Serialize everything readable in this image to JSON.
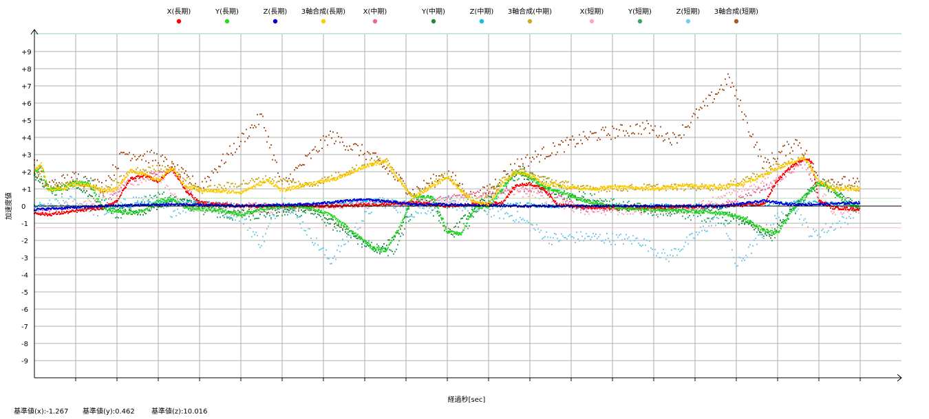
{
  "chart_data": {
    "type": "scatter",
    "xlabel": "経過秒[sec]",
    "ylabel": "加速度値",
    "ylim": [
      -10,
      10
    ],
    "xlim": [
      0,
      120
    ],
    "grid": true,
    "legend_position": "top",
    "y_ticks": [
      "+9",
      "+8",
      "+7",
      "+6",
      "+5",
      "+4",
      "+3",
      "+2",
      "+1",
      "0",
      "-1",
      "-2",
      "-3",
      "-4",
      "-5",
      "-6",
      "-7",
      "-8",
      "-9"
    ],
    "series": [
      {
        "name": "X(長期)",
        "color": "#ff0000",
        "values": [
          [
            0,
            -0.4
          ],
          [
            2,
            -0.5
          ],
          [
            6,
            -0.3
          ],
          [
            10,
            -0.1
          ],
          [
            12,
            0.3
          ],
          [
            14,
            1.6
          ],
          [
            16,
            1.8
          ],
          [
            18,
            1.4
          ],
          [
            20,
            2.2
          ],
          [
            22,
            0.9
          ],
          [
            24,
            0.2
          ],
          [
            30,
            0.0
          ],
          [
            36,
            0.0
          ],
          [
            40,
            0.0
          ],
          [
            45,
            0.0
          ],
          [
            50,
            0.1
          ],
          [
            55,
            0.2
          ],
          [
            60,
            0.0
          ],
          [
            65,
            0.1
          ],
          [
            68,
            0.2
          ],
          [
            70,
            1.2
          ],
          [
            72,
            1.3
          ],
          [
            74,
            1.0
          ],
          [
            76,
            0.1
          ],
          [
            80,
            -0.1
          ],
          [
            90,
            -0.1
          ],
          [
            100,
            0.0
          ],
          [
            106,
            0.1
          ],
          [
            108,
            1.5
          ],
          [
            110,
            2.3
          ],
          [
            112,
            2.8
          ],
          [
            113,
            2.5
          ],
          [
            114,
            0.3
          ],
          [
            116,
            -0.1
          ],
          [
            120,
            -0.2
          ]
        ]
      },
      {
        "name": "Y(長期)",
        "color": "#22dd22",
        "values": [
          [
            0,
            1.9
          ],
          [
            1,
            2.4
          ],
          [
            2,
            0.9
          ],
          [
            4,
            1.0
          ],
          [
            6,
            1.4
          ],
          [
            8,
            1.3
          ],
          [
            10,
            -0.1
          ],
          [
            12,
            -0.3
          ],
          [
            14,
            -0.4
          ],
          [
            16,
            -0.3
          ],
          [
            18,
            0.3
          ],
          [
            20,
            0.4
          ],
          [
            22,
            -0.1
          ],
          [
            25,
            -0.2
          ],
          [
            28,
            -0.3
          ],
          [
            30,
            -0.5
          ],
          [
            35,
            0.0
          ],
          [
            40,
            -0.1
          ],
          [
            43,
            -0.5
          ],
          [
            46,
            -1.4
          ],
          [
            49,
            -2.4
          ],
          [
            51,
            -2.6
          ],
          [
            53,
            -1.3
          ],
          [
            55,
            0.6
          ],
          [
            58,
            0.5
          ],
          [
            60,
            -1.5
          ],
          [
            62,
            -1.6
          ],
          [
            64,
            -0.1
          ],
          [
            66,
            0.0
          ],
          [
            68,
            1.0
          ],
          [
            70,
            2.0
          ],
          [
            72,
            1.7
          ],
          [
            74,
            1.1
          ],
          [
            76,
            0.9
          ],
          [
            80,
            0.3
          ],
          [
            85,
            -0.1
          ],
          [
            90,
            -0.2
          ],
          [
            95,
            -0.3
          ],
          [
            100,
            -0.4
          ],
          [
            103,
            -0.7
          ],
          [
            106,
            -1.4
          ],
          [
            108,
            -1.6
          ],
          [
            110,
            -0.3
          ],
          [
            112,
            0.6
          ],
          [
            114,
            1.4
          ],
          [
            116,
            1.0
          ],
          [
            118,
            0.1
          ],
          [
            120,
            0.0
          ]
        ]
      },
      {
        "name": "Z(長期)",
        "color": "#0000dd",
        "values": [
          [
            0,
            -0.2
          ],
          [
            10,
            0.0
          ],
          [
            20,
            0.1
          ],
          [
            30,
            0.0
          ],
          [
            40,
            0.1
          ],
          [
            48,
            0.4
          ],
          [
            55,
            0.1
          ],
          [
            60,
            0.1
          ],
          [
            70,
            0.0
          ],
          [
            80,
            0.0
          ],
          [
            90,
            0.0
          ],
          [
            100,
            0.0
          ],
          [
            106,
            0.3
          ],
          [
            110,
            0.1
          ],
          [
            114,
            0.1
          ],
          [
            120,
            0.2
          ]
        ]
      },
      {
        "name": "3軸合成(長期)",
        "color": "#ffcc00",
        "values": [
          [
            0,
            2.0
          ],
          [
            1,
            2.5
          ],
          [
            2,
            1.0
          ],
          [
            4,
            1.0
          ],
          [
            6,
            1.3
          ],
          [
            8,
            1.2
          ],
          [
            10,
            0.9
          ],
          [
            12,
            1.0
          ],
          [
            14,
            2.1
          ],
          [
            16,
            1.8
          ],
          [
            18,
            1.5
          ],
          [
            20,
            2.2
          ],
          [
            22,
            1.1
          ],
          [
            25,
            0.9
          ],
          [
            30,
            0.8
          ],
          [
            34,
            1.5
          ],
          [
            36,
            0.9
          ],
          [
            40,
            1.3
          ],
          [
            44,
            1.6
          ],
          [
            48,
            2.3
          ],
          [
            51,
            2.6
          ],
          [
            53,
            1.5
          ],
          [
            55,
            0.5
          ],
          [
            58,
            1.2
          ],
          [
            60,
            1.7
          ],
          [
            62,
            0.9
          ],
          [
            64,
            0.2
          ],
          [
            66,
            0.1
          ],
          [
            68,
            1.3
          ],
          [
            70,
            2.0
          ],
          [
            72,
            1.8
          ],
          [
            74,
            1.3
          ],
          [
            76,
            1.2
          ],
          [
            80,
            1.0
          ],
          [
            85,
            1.1
          ],
          [
            90,
            1.0
          ],
          [
            95,
            1.2
          ],
          [
            100,
            1.1
          ],
          [
            103,
            1.3
          ],
          [
            106,
            1.8
          ],
          [
            108,
            2.2
          ],
          [
            110,
            2.5
          ],
          [
            112,
            2.8
          ],
          [
            114,
            1.4
          ],
          [
            116,
            1.0
          ],
          [
            120,
            1.0
          ]
        ]
      },
      {
        "name": "X(中期)",
        "color": "#ee6699",
        "values": [
          [
            0,
            -0.3
          ],
          [
            10,
            0.0
          ],
          [
            14,
            1.5
          ],
          [
            17,
            1.9
          ],
          [
            20,
            2.1
          ],
          [
            24,
            0.1
          ],
          [
            40,
            0.0
          ],
          [
            55,
            0.2
          ],
          [
            70,
            1.0
          ],
          [
            74,
            0.9
          ],
          [
            80,
            -0.2
          ],
          [
            100,
            0.0
          ],
          [
            108,
            1.4
          ],
          [
            112,
            2.7
          ],
          [
            114,
            0.2
          ],
          [
            120,
            -0.2
          ]
        ]
      },
      {
        "name": "Y(中期)",
        "color": "#228833",
        "values": [
          [
            0,
            1.8
          ],
          [
            2,
            1.0
          ],
          [
            6,
            1.3
          ],
          [
            10,
            -0.2
          ],
          [
            16,
            -0.4
          ],
          [
            20,
            0.4
          ],
          [
            30,
            -0.4
          ],
          [
            40,
            -0.1
          ],
          [
            46,
            -1.6
          ],
          [
            50,
            -2.7
          ],
          [
            53,
            -1.5
          ],
          [
            55,
            0.5
          ],
          [
            58,
            0.4
          ],
          [
            60,
            -1.7
          ],
          [
            64,
            -0.1
          ],
          [
            70,
            1.9
          ],
          [
            75,
            0.8
          ],
          [
            85,
            -0.1
          ],
          [
            100,
            -0.3
          ],
          [
            107,
            -1.7
          ],
          [
            110,
            -0.2
          ],
          [
            114,
            1.3
          ],
          [
            120,
            -0.1
          ]
        ]
      },
      {
        "name": "Z(中期)",
        "color": "#11bbee",
        "values": [
          [
            0,
            0.0
          ],
          [
            10,
            -0.1
          ],
          [
            20,
            0.3
          ],
          [
            30,
            0.0
          ],
          [
            40,
            0.1
          ],
          [
            50,
            0.3
          ],
          [
            60,
            0.0
          ],
          [
            70,
            0.1
          ],
          [
            80,
            -0.1
          ],
          [
            90,
            0.0
          ],
          [
            100,
            0.0
          ],
          [
            110,
            0.2
          ],
          [
            120,
            0.1
          ]
        ]
      },
      {
        "name": "3軸合成(中期)",
        "color": "#ccaa22",
        "values": [
          [
            0,
            2.2
          ],
          [
            2,
            1.0
          ],
          [
            6,
            1.4
          ],
          [
            10,
            0.9
          ],
          [
            14,
            2.0
          ],
          [
            20,
            2.3
          ],
          [
            24,
            0.9
          ],
          [
            34,
            1.6
          ],
          [
            40,
            1.2
          ],
          [
            48,
            2.4
          ],
          [
            51,
            2.7
          ],
          [
            55,
            0.6
          ],
          [
            60,
            1.8
          ],
          [
            64,
            0.2
          ],
          [
            70,
            2.1
          ],
          [
            74,
            1.6
          ],
          [
            80,
            1.0
          ],
          [
            90,
            1.1
          ],
          [
            100,
            1.1
          ],
          [
            108,
            2.3
          ],
          [
            112,
            2.9
          ],
          [
            114,
            1.3
          ],
          [
            120,
            1.0
          ]
        ]
      },
      {
        "name": "X(短期)",
        "color": "#ffaabb",
        "values": [
          [
            0,
            -0.3
          ],
          [
            8,
            0.2
          ],
          [
            14,
            1.4
          ],
          [
            18,
            1.7
          ],
          [
            22,
            0.0
          ],
          [
            30,
            -0.3
          ],
          [
            45,
            0.1
          ],
          [
            60,
            0.2
          ],
          [
            70,
            0.9
          ],
          [
            80,
            -0.3
          ],
          [
            95,
            -0.2
          ],
          [
            108,
            1.6
          ],
          [
            112,
            2.5
          ],
          [
            116,
            -0.3
          ],
          [
            120,
            -0.2
          ]
        ]
      },
      {
        "name": "Y(短期)",
        "color": "#33aa66",
        "values": [
          [
            0,
            1.7
          ],
          [
            3,
            0.8
          ],
          [
            8,
            1.5
          ],
          [
            12,
            -0.5
          ],
          [
            18,
            0.6
          ],
          [
            28,
            -0.6
          ],
          [
            40,
            -0.3
          ],
          [
            48,
            -2.2
          ],
          [
            52,
            -2.8
          ],
          [
            56,
            0.7
          ],
          [
            61,
            -1.8
          ],
          [
            66,
            0.2
          ],
          [
            71,
            2.1
          ],
          [
            78,
            0.7
          ],
          [
            90,
            -0.3
          ],
          [
            104,
            -0.9
          ],
          [
            107,
            -1.9
          ],
          [
            114,
            1.5
          ],
          [
            120,
            -0.3
          ]
        ]
      },
      {
        "name": "Z(短期)",
        "color": "#77ccee",
        "values": [
          [
            0,
            -0.2
          ],
          [
            5,
            0.3
          ],
          [
            10,
            -0.4
          ],
          [
            15,
            0.4
          ],
          [
            20,
            -0.3
          ],
          [
            25,
            0.2
          ],
          [
            30,
            -0.6
          ],
          [
            33,
            -2.2
          ],
          [
            36,
            0.5
          ],
          [
            43,
            -3.2
          ],
          [
            50,
            0.4
          ],
          [
            55,
            -0.4
          ],
          [
            60,
            0.2
          ],
          [
            70,
            -0.6
          ],
          [
            75,
            -1.9
          ],
          [
            80,
            -1.8
          ],
          [
            88,
            -2.0
          ],
          [
            92,
            -3.0
          ],
          [
            100,
            -0.5
          ],
          [
            102,
            -3.5
          ],
          [
            110,
            0.3
          ],
          [
            113,
            -1.7
          ],
          [
            118,
            -0.8
          ],
          [
            120,
            0.1
          ]
        ]
      },
      {
        "name": "3軸合成(短期)",
        "color": "#aa5522",
        "values": [
          [
            0,
            2.6
          ],
          [
            2,
            1.2
          ],
          [
            6,
            1.7
          ],
          [
            10,
            1.1
          ],
          [
            13,
            3.1
          ],
          [
            18,
            2.8
          ],
          [
            24,
            1.1
          ],
          [
            33,
            5.2
          ],
          [
            36,
            1.2
          ],
          [
            43,
            4.1
          ],
          [
            49,
            2.9
          ],
          [
            55,
            0.8
          ],
          [
            60,
            1.9
          ],
          [
            64,
            0.3
          ],
          [
            70,
            2.4
          ],
          [
            76,
            3.4
          ],
          [
            81,
            4.1
          ],
          [
            89,
            4.6
          ],
          [
            93,
            3.9
          ],
          [
            101,
            7.4
          ],
          [
            106,
            2.4
          ],
          [
            111,
            3.8
          ],
          [
            114,
            1.6
          ],
          [
            120,
            1.2
          ]
        ]
      }
    ]
  },
  "baselines": {
    "x": "基準値(x):-1.267",
    "y": "基準値(y):0.462",
    "z": "基準値(z):10.016"
  }
}
